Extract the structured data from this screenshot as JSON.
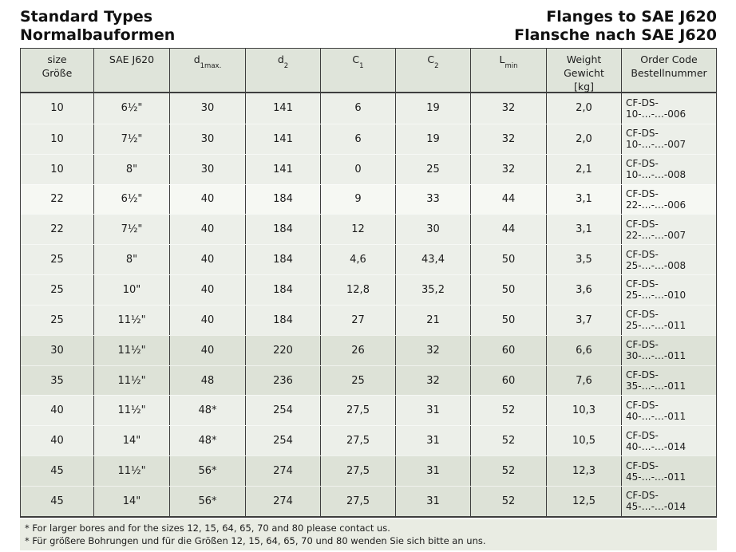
{
  "header": {
    "title_left_line1": "Standard Types",
    "title_left_line2": "Normalbauformen",
    "title_right_line1": "Flanges to SAE J620",
    "title_right_line2": "Flansche nach SAE J620"
  },
  "table": {
    "headers": {
      "size": {
        "line1": "size",
        "line2": "Größe"
      },
      "sae": {
        "line1": "SAE J620"
      },
      "d1": {
        "main": "d",
        "sub": "1max."
      },
      "d2": {
        "main": "d",
        "sub": "2"
      },
      "c1": {
        "main": "C",
        "sub": "1"
      },
      "c2": {
        "main": "C",
        "sub": "2"
      },
      "lmin": {
        "main": "L",
        "sub": "min"
      },
      "weight": {
        "line1": "Weight",
        "line2": "Gewicht",
        "line3": "[kg]"
      },
      "order": {
        "line1": "Order Code",
        "line2": "Bestellnummer"
      }
    },
    "rows": [
      {
        "size": "10",
        "sae": "6½\"",
        "d1": "30",
        "d2": "141",
        "c1": "6",
        "c2": "19",
        "lmin": "32",
        "weight": "2,0",
        "order": "CF-DS-10-…-…-006",
        "band": "light"
      },
      {
        "size": "10",
        "sae": "7½\"",
        "d1": "30",
        "d2": "141",
        "c1": "6",
        "c2": "19",
        "lmin": "32",
        "weight": "2,0",
        "order": "CF-DS-10-…-…-007",
        "band": "light"
      },
      {
        "size": "10",
        "sae": "8\"",
        "d1": "30",
        "d2": "141",
        "c1": "0",
        "c2": "25",
        "lmin": "32",
        "weight": "2,1",
        "order": "CF-DS-10-…-…-008",
        "band": "light"
      },
      {
        "size": "22",
        "sae": "6½\"",
        "d1": "40",
        "d2": "184",
        "c1": "9",
        "c2": "33",
        "lmin": "44",
        "weight": "3,1",
        "order": "CF-DS-22-…-…-006",
        "band": "white"
      },
      {
        "size": "22",
        "sae": "7½\"",
        "d1": "40",
        "d2": "184",
        "c1": "12",
        "c2": "30",
        "lmin": "44",
        "weight": "3,1",
        "order": "CF-DS-22-…-…-007",
        "band": "light"
      },
      {
        "size": "25",
        "sae": "8\"",
        "d1": "40",
        "d2": "184",
        "c1": "4,6",
        "c2": "43,4",
        "lmin": "50",
        "weight": "3,5",
        "order": "CF-DS-25-…-…-008",
        "band": "light"
      },
      {
        "size": "25",
        "sae": "10\"",
        "d1": "40",
        "d2": "184",
        "c1": "12,8",
        "c2": "35,2",
        "lmin": "50",
        "weight": "3,6",
        "order": "CF-DS-25-…-…-010",
        "band": "light"
      },
      {
        "size": "25",
        "sae": "11½\"",
        "d1": "40",
        "d2": "184",
        "c1": "27",
        "c2": "21",
        "lmin": "50",
        "weight": "3,7",
        "order": "CF-DS-25-…-…-011",
        "band": "light"
      },
      {
        "size": "30",
        "sae": "11½\"",
        "d1": "40",
        "d2": "220",
        "c1": "26",
        "c2": "32",
        "lmin": "60",
        "weight": "6,6",
        "order": "CF-DS-30-…-…-011",
        "band": "dark"
      },
      {
        "size": "35",
        "sae": "11½\"",
        "d1": "48",
        "d2": "236",
        "c1": "25",
        "c2": "32",
        "lmin": "60",
        "weight": "7,6",
        "order": "CF-DS-35-…-…-011",
        "band": "dark"
      },
      {
        "size": "40",
        "sae": "11½\"",
        "d1": "48*",
        "d2": "254",
        "c1": "27,5",
        "c2": "31",
        "lmin": "52",
        "weight": "10,3",
        "order": "CF-DS-40-…-…-011",
        "band": "light"
      },
      {
        "size": "40",
        "sae": "14\"",
        "d1": "48*",
        "d2": "254",
        "c1": "27,5",
        "c2": "31",
        "lmin": "52",
        "weight": "10,5",
        "order": "CF-DS-40-…-…-014",
        "band": "light"
      },
      {
        "size": "45",
        "sae": "11½\"",
        "d1": "56*",
        "d2": "274",
        "c1": "27,5",
        "c2": "31",
        "lmin": "52",
        "weight": "12,3",
        "order": "CF-DS-45-…-…-011",
        "band": "dark"
      },
      {
        "size": "45",
        "sae": "14\"",
        "d1": "56*",
        "d2": "274",
        "c1": "27,5",
        "c2": "31",
        "lmin": "52",
        "weight": "12,5",
        "order": "CF-DS-45-…-…-014",
        "band": "dark"
      }
    ]
  },
  "footnotes": [
    "* For larger bores and for the sizes 12, 15, 64, 65, 70 and 80 please contact us.",
    "* Für größere Bohrungen und für die Größen 12, 15, 64, 65, 70 und 80 wenden Sie sich bitte an uns."
  ],
  "colors": {
    "row_light": "#ecefe9",
    "row_white": "#f6f8f3",
    "row_dark": "#dde2d7",
    "header_bg": "#dfe4da",
    "footnote_bg": "#e9ece3",
    "border": "#3e3e3e",
    "text": "#1c1c1c"
  }
}
